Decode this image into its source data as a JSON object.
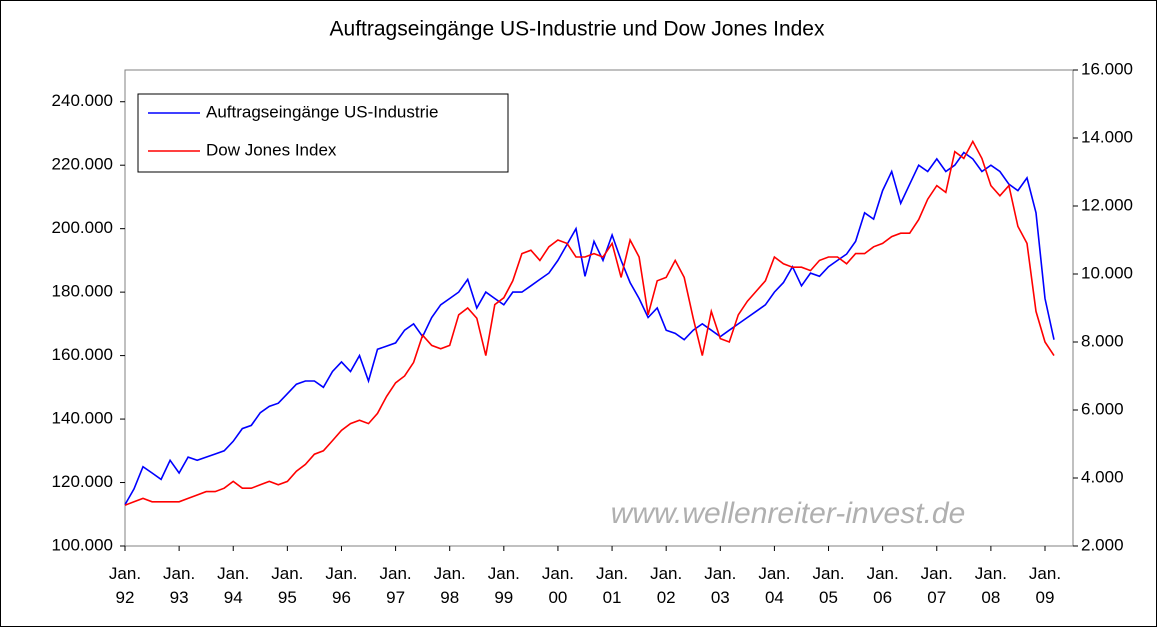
{
  "chart_data": {
    "type": "line",
    "title": "Auftragseingänge US-Industrie und Dow Jones Index",
    "watermark": "www.wellenreiter-invest.de",
    "categories": [
      "Jan. 92",
      null,
      null,
      null,
      null,
      null,
      "Jan. 93",
      null,
      null,
      null,
      null,
      null,
      "Jan. 94",
      null,
      null,
      null,
      null,
      null,
      "Jan. 95",
      null,
      null,
      null,
      null,
      null,
      "Jan. 96",
      null,
      null,
      null,
      null,
      null,
      "Jan. 97",
      null,
      null,
      null,
      null,
      null,
      "Jan. 98",
      null,
      null,
      null,
      null,
      null,
      "Jan. 99",
      null,
      null,
      null,
      null,
      null,
      "Jan. 00",
      null,
      null,
      null,
      null,
      null,
      "Jan. 01",
      null,
      null,
      null,
      null,
      null,
      "Jan. 02",
      null,
      null,
      null,
      null,
      null,
      "Jan. 03",
      null,
      null,
      null,
      null,
      null,
      "Jan. 04",
      null,
      null,
      null,
      null,
      null,
      "Jan. 05",
      null,
      null,
      null,
      null,
      null,
      "Jan. 06",
      null,
      null,
      null,
      null,
      null,
      "Jan. 07",
      null,
      null,
      null,
      null,
      null,
      "Jan. 08",
      null,
      null,
      null,
      null,
      null,
      "Jan. 09",
      null
    ],
    "series": [
      {
        "name": "Auftragseingänge US-Industrie",
        "color": "#0000ff",
        "axis": "y",
        "values": [
          113000,
          118000,
          125000,
          123000,
          121000,
          127000,
          123000,
          128000,
          127000,
          128000,
          129000,
          130000,
          133000,
          137000,
          138000,
          142000,
          144000,
          145000,
          148000,
          151000,
          152000,
          152000,
          150000,
          155000,
          158000,
          155000,
          160000,
          152000,
          162000,
          163000,
          164000,
          168000,
          170000,
          166000,
          172000,
          176000,
          178000,
          180000,
          184000,
          175000,
          180000,
          178000,
          176000,
          180000,
          180000,
          182000,
          184000,
          186000,
          190000,
          195000,
          200000,
          185000,
          196000,
          190000,
          198000,
          190000,
          183000,
          178000,
          172000,
          175000,
          168000,
          167000,
          165000,
          168000,
          170000,
          168000,
          166000,
          168000,
          170000,
          172000,
          174000,
          176000,
          180000,
          183000,
          188000,
          182000,
          186000,
          185000,
          188000,
          190000,
          192000,
          196000,
          205000,
          203000,
          212000,
          218000,
          208000,
          214000,
          220000,
          218000,
          222000,
          218000,
          220000,
          224000,
          222000,
          218000,
          220000,
          218000,
          214000,
          212000,
          216000,
          205000,
          178000,
          165000
        ]
      },
      {
        "name": "Dow Jones Index",
        "color": "#ff0000",
        "axis": "y2",
        "values": [
          3200,
          3300,
          3400,
          3300,
          3300,
          3300,
          3300,
          3400,
          3500,
          3600,
          3600,
          3700,
          3900,
          3700,
          3700,
          3800,
          3900,
          3800,
          3900,
          4200,
          4400,
          4700,
          4800,
          5100,
          5400,
          5600,
          5700,
          5600,
          5900,
          6400,
          6800,
          7000,
          7400,
          8200,
          7900,
          7800,
          7900,
          8800,
          9000,
          8700,
          7600,
          9100,
          9300,
          9800,
          10600,
          10700,
          10400,
          10800,
          11000,
          10900,
          10500,
          10500,
          10600,
          10500,
          10900,
          9900,
          11000,
          10500,
          8800,
          9800,
          9900,
          10400,
          9900,
          8700,
          7600,
          8900,
          8100,
          8000,
          8800,
          9200,
          9500,
          9800,
          10500,
          10300,
          10200,
          10200,
          10100,
          10400,
          10500,
          10500,
          10300,
          10600,
          10600,
          10800,
          10900,
          11100,
          11200,
          11200,
          11600,
          12200,
          12600,
          12400,
          13600,
          13400,
          13900,
          13400,
          12600,
          12300,
          12600,
          11400,
          10900,
          8900,
          8000,
          7600
        ]
      }
    ],
    "ylim": [
      100000,
      250000
    ],
    "yticks": [
      {
        "value": 100000,
        "label": "100.000"
      },
      {
        "value": 120000,
        "label": "120.000"
      },
      {
        "value": 140000,
        "label": "140.000"
      },
      {
        "value": 160000,
        "label": "160.000"
      },
      {
        "value": 180000,
        "label": "180.000"
      },
      {
        "value": 200000,
        "label": "200.000"
      },
      {
        "value": 220000,
        "label": "220.000"
      },
      {
        "value": 240000,
        "label": "240.000"
      }
    ],
    "y2lim": [
      2000,
      16000
    ],
    "y2ticks": [
      {
        "value": 2000,
        "label": "2.000"
      },
      {
        "value": 4000,
        "label": "4.000"
      },
      {
        "value": 6000,
        "label": "6.000"
      },
      {
        "value": 8000,
        "label": "8.000"
      },
      {
        "value": 10000,
        "label": "10.000"
      },
      {
        "value": 12000,
        "label": "12.000"
      },
      {
        "value": 14000,
        "label": "14.000"
      },
      {
        "value": 16000,
        "label": "16.000"
      }
    ],
    "grid": false,
    "legend": "upper left"
  }
}
